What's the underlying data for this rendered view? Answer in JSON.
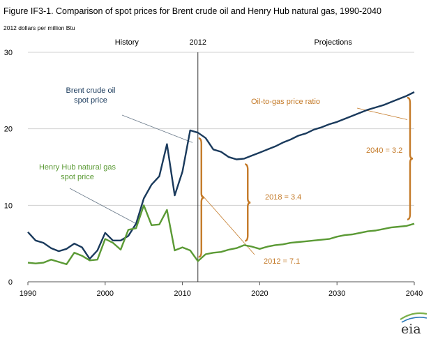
{
  "chart_data": {
    "type": "line",
    "title": "Figure IF3-1. Comparison of spot prices for Brent crude oil and Henry Hub natural gas, 1990-2040",
    "ylabel": "2012 dollars per million Btu",
    "xlim": [
      1990,
      2040
    ],
    "ylim": [
      0,
      30
    ],
    "xticks": [
      "1990",
      "2000",
      "2010",
      "2020",
      "2030",
      "2040"
    ],
    "yticks": [
      "0",
      "10",
      "20",
      "30"
    ],
    "grid": "horizontal",
    "colors": {
      "brent": "#1a3a5c",
      "henry_hub": "#5b9a35",
      "ratio": "#c47a28"
    },
    "divider": {
      "x": 2012,
      "label": "2012"
    },
    "sections": {
      "history": "History",
      "projections": "Projections"
    },
    "x": [
      1990,
      1991,
      1992,
      1993,
      1994,
      1995,
      1996,
      1997,
      1998,
      1999,
      2000,
      2001,
      2002,
      2003,
      2004,
      2005,
      2006,
      2007,
      2008,
      2009,
      2010,
      2011,
      2012,
      2013,
      2014,
      2015,
      2016,
      2017,
      2018,
      2019,
      2020,
      2021,
      2022,
      2023,
      2024,
      2025,
      2026,
      2027,
      2028,
      2029,
      2030,
      2031,
      2032,
      2033,
      2034,
      2035,
      2036,
      2037,
      2038,
      2039,
      2040
    ],
    "series": [
      {
        "name": "Brent crude oil spot price",
        "label_lines": [
          "Brent crude oil",
          "spot price"
        ],
        "values": [
          6.5,
          5.4,
          5.1,
          4.4,
          4.0,
          4.3,
          5.0,
          4.5,
          3.0,
          4.1,
          6.4,
          5.4,
          5.4,
          6.0,
          7.6,
          10.9,
          12.7,
          13.8,
          18.0,
          11.3,
          14.4,
          19.8,
          19.5,
          18.8,
          17.3,
          17.0,
          16.3,
          16.0,
          16.1,
          16.5,
          16.9,
          17.3,
          17.7,
          18.2,
          18.6,
          19.1,
          19.4,
          19.9,
          20.2,
          20.6,
          20.9,
          21.3,
          21.7,
          22.1,
          22.5,
          22.8,
          23.1,
          23.5,
          23.9,
          24.3,
          24.8
        ]
      },
      {
        "name": "Henry Hub natural gas spot price",
        "label_lines": [
          "Henry Hub natural gas",
          "spot price"
        ],
        "values": [
          2.5,
          2.4,
          2.5,
          2.9,
          2.6,
          2.3,
          3.8,
          3.4,
          2.8,
          2.9,
          5.6,
          5.1,
          4.2,
          6.8,
          7.0,
          10.0,
          7.4,
          7.5,
          9.4,
          4.1,
          4.5,
          4.1,
          2.7,
          3.6,
          3.8,
          3.9,
          4.2,
          4.4,
          4.8,
          4.6,
          4.3,
          4.6,
          4.8,
          4.9,
          5.1,
          5.2,
          5.3,
          5.4,
          5.5,
          5.6,
          5.9,
          6.1,
          6.2,
          6.4,
          6.6,
          6.7,
          6.9,
          7.1,
          7.2,
          7.3,
          7.6
        ]
      }
    ],
    "annotations": {
      "ratio_title": "Oil-to-gas price ratio",
      "ratios": [
        {
          "year": 2012,
          "low": 2.7,
          "high": 19.5,
          "label": "2012 = 7.1"
        },
        {
          "year": 2018,
          "low": 4.8,
          "high": 16.1,
          "label": "2018 = 3.4"
        },
        {
          "year": 2040,
          "low": 7.6,
          "high": 24.8,
          "label": "2040 = 3.2"
        }
      ]
    }
  },
  "logo_text": "eia"
}
